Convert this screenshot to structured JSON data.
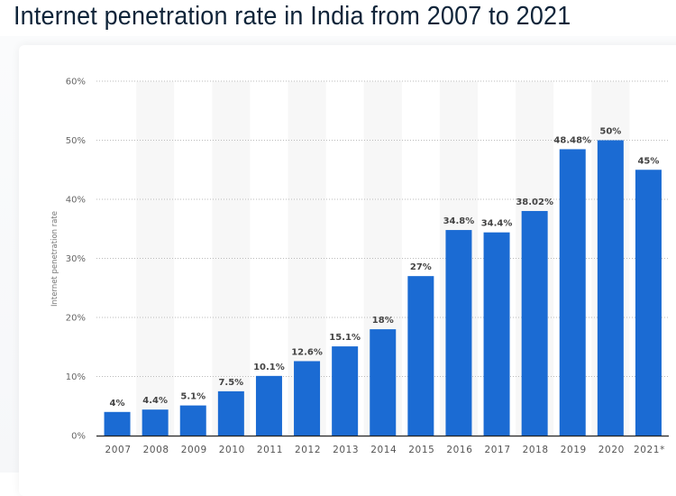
{
  "page": {
    "title": "Internet penetration rate in India from 2007 to 2021"
  },
  "colors": {
    "bar": "#1b6bd3",
    "band": "#f7f7f7",
    "grid": "#bbbbbb",
    "axis": "#222222"
  },
  "chart_data": {
    "type": "bar",
    "title": "Internet penetration rate in India from 2007 to 2021",
    "xlabel": "",
    "ylabel": "Internet penetration rate",
    "ylim": [
      0,
      60
    ],
    "yticks": [
      0,
      10,
      20,
      30,
      40,
      50,
      60
    ],
    "ytick_labels": [
      "0%",
      "10%",
      "20%",
      "30%",
      "40%",
      "50%",
      "60%"
    ],
    "grid": true,
    "categories": [
      "2007",
      "2008",
      "2009",
      "2010",
      "2011",
      "2012",
      "2013",
      "2014",
      "2015",
      "2016",
      "2017",
      "2018",
      "2019",
      "2020",
      "2021*"
    ],
    "values": [
      4,
      4.4,
      5.1,
      7.5,
      10.1,
      12.6,
      15.1,
      18,
      27,
      34.8,
      34.4,
      38.02,
      48.48,
      50,
      45
    ],
    "data_labels": [
      "4%",
      "4.4%",
      "5.1%",
      "7.5%",
      "10.1%",
      "12.6%",
      "15.1%",
      "18%",
      "27%",
      "34.8%",
      "34.4%",
      "38.02%",
      "48.48%",
      "50%",
      "45%"
    ],
    "legend": "none"
  }
}
